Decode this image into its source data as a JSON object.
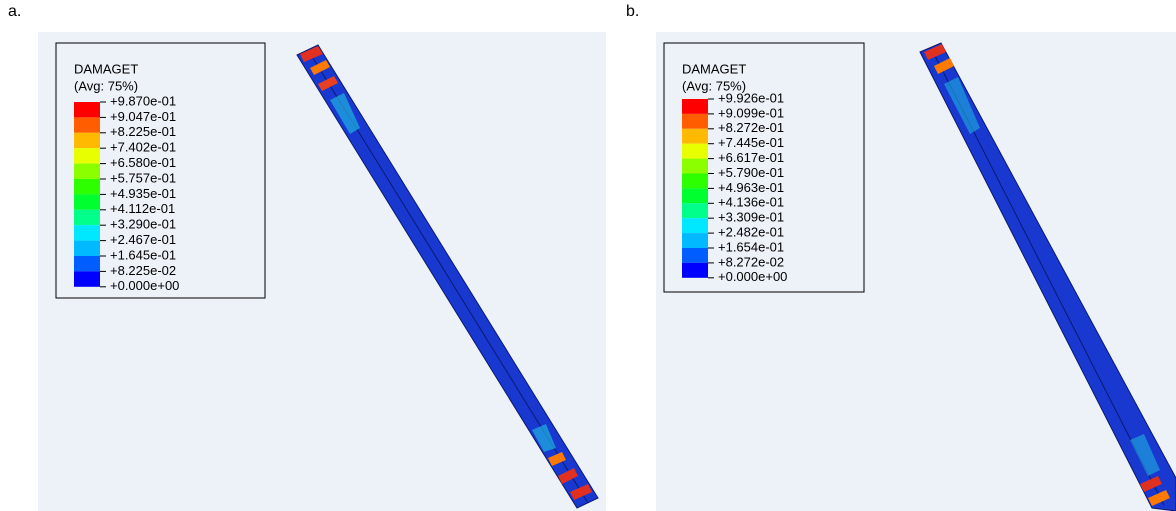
{
  "panels": [
    {
      "label": "a.",
      "legend": {
        "title": "DAMAGET",
        "subtitle": "(Avg: 75%)",
        "colors": [
          "#ff0000",
          "#ff5d00",
          "#ffb900",
          "#e8ff00",
          "#8bff00",
          "#2eff00",
          "#00ff2e",
          "#00ff8b",
          "#00e8ff",
          "#00b9ff",
          "#005dff",
          "#0000ff"
        ],
        "ticks": [
          "+9.870e-01",
          "+9.047e-01",
          "+8.225e-01",
          "+7.402e-01",
          "+6.580e-01",
          "+5.757e-01",
          "+4.935e-01",
          "+4.112e-01",
          "+3.290e-01",
          "+2.467e-01",
          "+1.645e-01",
          "+8.225e-02",
          "+0.000e+00"
        ]
      }
    },
    {
      "label": "b.",
      "legend": {
        "title": "DAMAGET",
        "subtitle": "(Avg: 75%)",
        "colors": [
          "#ff0000",
          "#ff5d00",
          "#ffb900",
          "#e8ff00",
          "#8bff00",
          "#2eff00",
          "#00ff2e",
          "#00ff8b",
          "#00e8ff",
          "#00b9ff",
          "#005dff",
          "#0000ff"
        ],
        "ticks": [
          "+9.926e-01",
          "+9.099e-01",
          "+8.272e-01",
          "+7.445e-01",
          "+6.617e-01",
          "+5.790e-01",
          "+4.963e-01",
          "+4.136e-01",
          "+3.309e-01",
          "+2.482e-01",
          "+1.654e-01",
          "+8.272e-02",
          "+0.000e+00"
        ]
      }
    }
  ]
}
